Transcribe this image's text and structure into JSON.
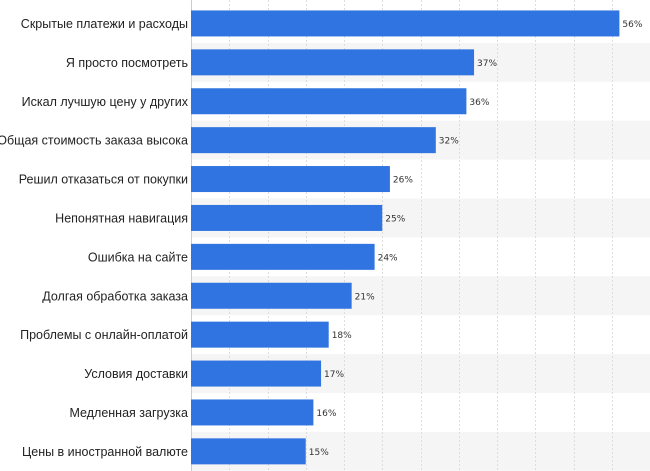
{
  "chart_data": {
    "type": "bar",
    "orientation": "horizontal",
    "categories": [
      "Скрытые платежи и расходы",
      "Я просто посмотреть",
      "Искал лучшую цену у других",
      "Общая стоимость заказа высока",
      "Решил отказаться от покупки",
      "Непонятная навигация",
      "Ошибка на сайте",
      "Долгая обработка заказа",
      "Проблемы с онлайн-оплатой",
      "Условия доставки",
      "Медленная загрузка",
      "Цены в иностранной валюте"
    ],
    "values": [
      56,
      37,
      36,
      32,
      26,
      25,
      24,
      21,
      18,
      17,
      16,
      15
    ],
    "value_labels": [
      "56%",
      "37%",
      "36%",
      "32%",
      "26%",
      "25%",
      "24%",
      "21%",
      "18%",
      "17%",
      "16%",
      "15%"
    ],
    "xlim": [
      0,
      60
    ],
    "grid": true,
    "legend": "none",
    "colors": {
      "bar": "#2f74e0",
      "band": "#f5f5f5",
      "grid": "#dddddd",
      "label": "#222222"
    }
  }
}
